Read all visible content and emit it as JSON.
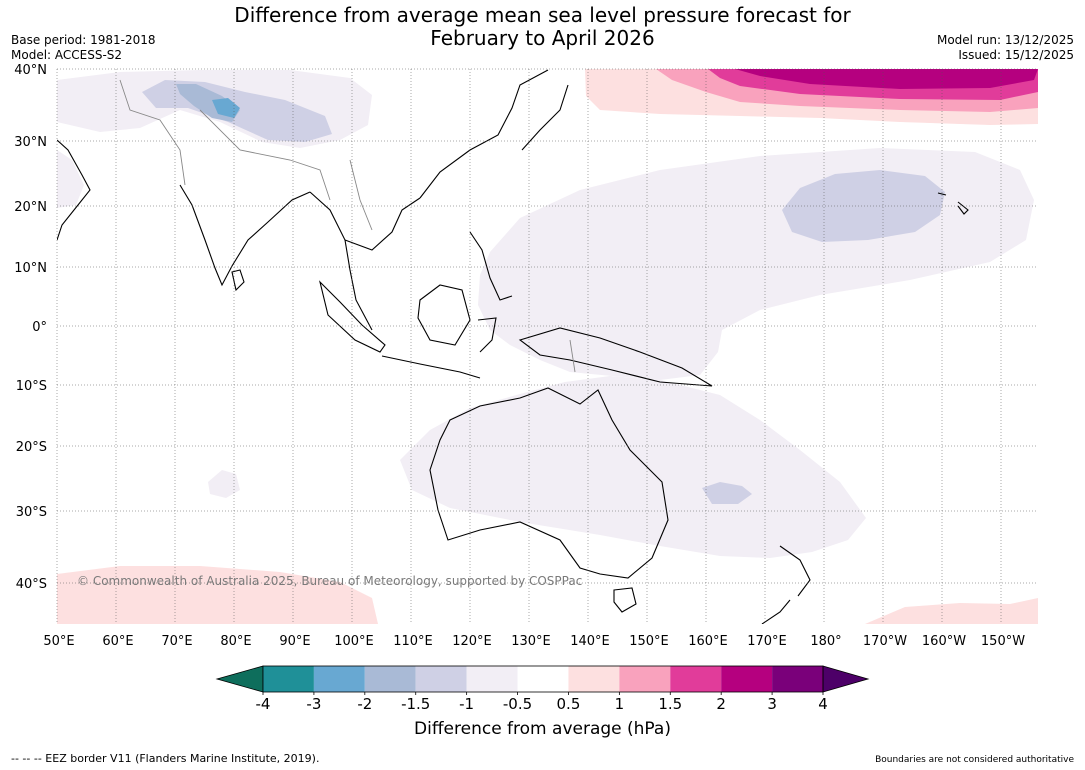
{
  "header": {
    "title_line1": "Difference from average mean sea level pressure forecast for",
    "title_line2": "February to April 2026",
    "base_period": "Base period: 1981-2018",
    "model": "Model: ACCESS-S2",
    "model_run": "Model run: 13/12/2025",
    "issued": "Issued: 15/12/2025"
  },
  "map": {
    "lat_labels": [
      "40°N",
      "30°N",
      "20°N",
      "10°N",
      "0°",
      "10°S",
      "20°S",
      "30°S",
      "40°S"
    ],
    "lon_labels": [
      "50°E",
      "60°E",
      "70°E",
      "80°E",
      "90°E",
      "100°E",
      "110°E",
      "120°E",
      "130°E",
      "140°E",
      "150°E",
      "160°E",
      "170°E",
      "180°",
      "170°W",
      "160°W",
      "150°W"
    ],
    "copyright": "© Commonwealth of Australia 2025, Bureau of Meteorology, supported by COSPPac",
    "colors": {
      "ocean": "#ffffff",
      "neg_weak": "#f2eef5",
      "neg_mod": "#cfd0e5",
      "neg_strong": "#a9bad6",
      "pos_weak": "#fde0e0",
      "pos_mod": "#f9a2bd",
      "pos_strong": "#e13c9a",
      "pos_vstrong": "#b5007f"
    }
  },
  "colorbar": {
    "ticks": [
      "-4",
      "-3",
      "-2",
      "-1.5",
      "-1",
      "-0.5",
      "0.5",
      "1",
      "1.5",
      "2",
      "3",
      "4"
    ],
    "colors": [
      "#0e6e5c",
      "#1f9098",
      "#68a8d2",
      "#a9bad6",
      "#cfd0e5",
      "#f2eef5",
      "#ffffff",
      "#fde0e0",
      "#f9a2bd",
      "#e13c9a",
      "#b5007f",
      "#7a007a",
      "#4d0068"
    ],
    "label": "Difference from average (hPa)"
  },
  "footer": {
    "eez_note": "--  --  -- EEZ border V11 (Flanders Marine Institute, 2019).",
    "disclaimer": "Boundaries are not considered authoritative"
  }
}
